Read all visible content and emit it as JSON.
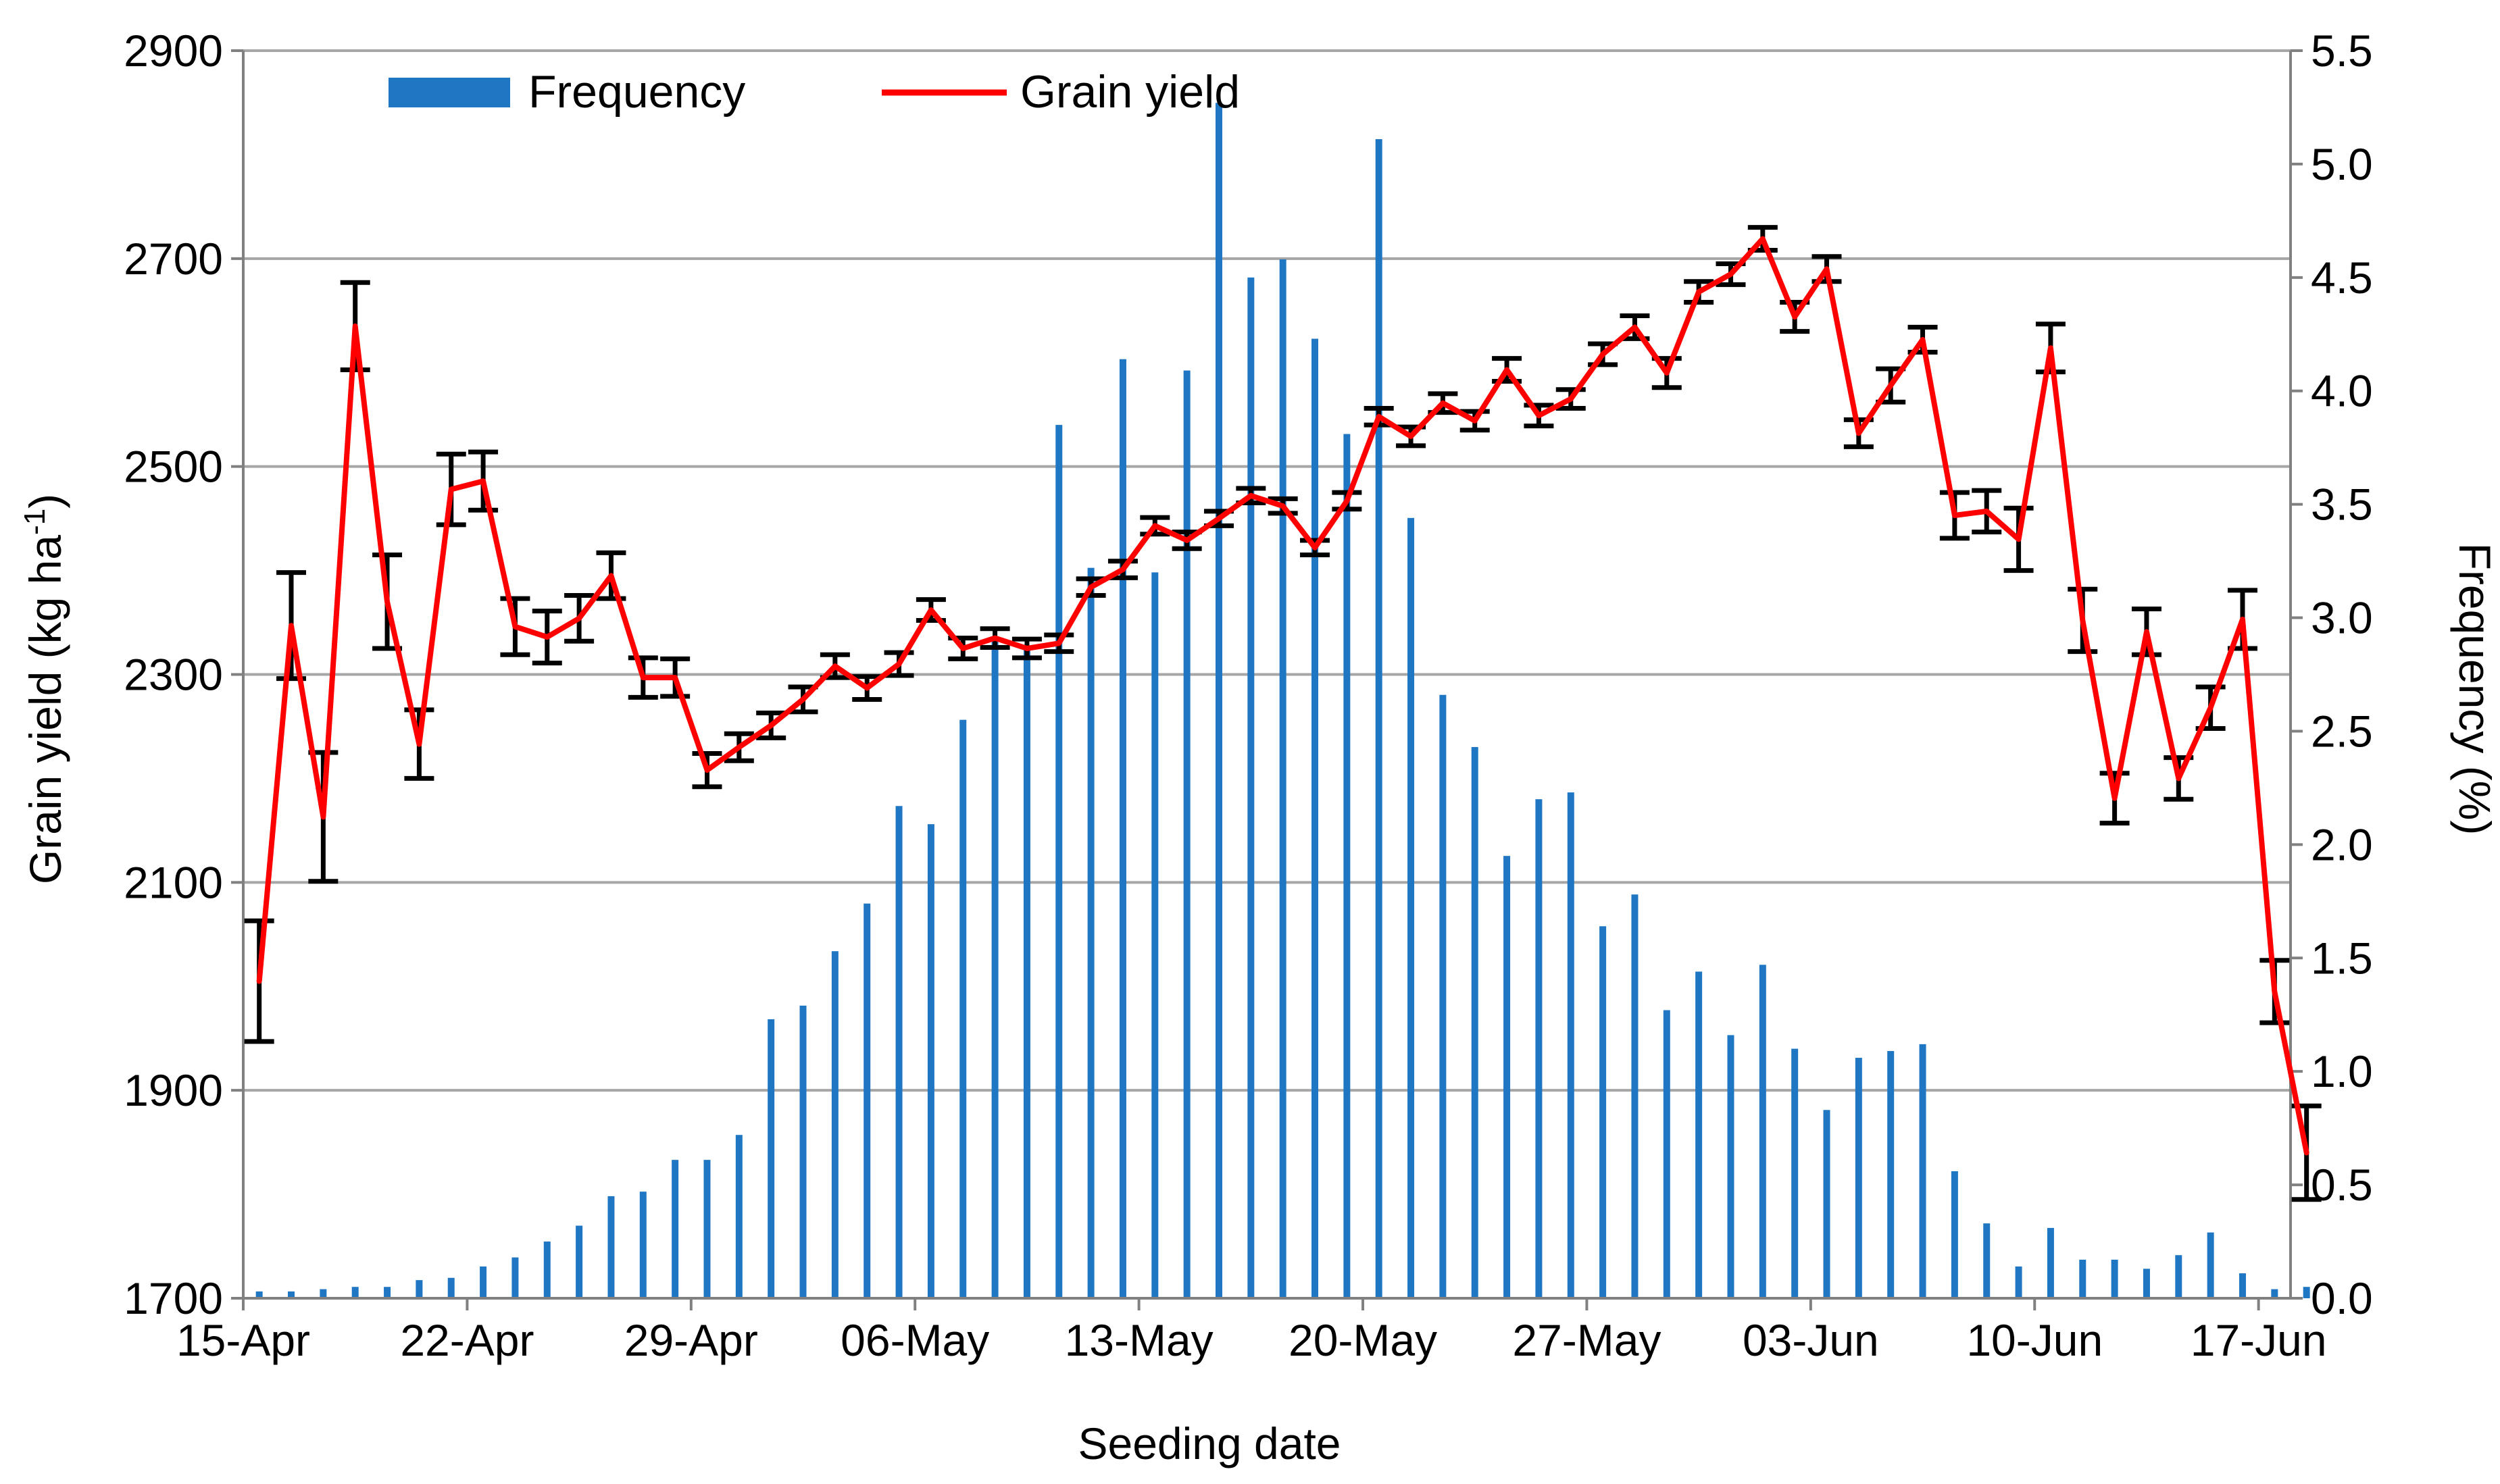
{
  "chart_data": {
    "type": "bar+line",
    "title": "",
    "xlabel": "Seeding date",
    "ylabel_left": {
      "base": "Grain yield (kg ha",
      "sup": "-1",
      "close": ")"
    },
    "ylabel_right": "Frequency (%)",
    "left_axis": {
      "min": 1700,
      "max": 2900,
      "step": 200,
      "tick_labels": [
        "1700",
        "1900",
        "2100",
        "2300",
        "2500",
        "2700",
        "2900"
      ]
    },
    "right_axis": {
      "min": 0,
      "max": 5.5,
      "step": 0.5,
      "tick_labels": [
        "0.0",
        "0.5",
        "1.0",
        "1.5",
        "2.0",
        "2.5",
        "3.0",
        "3.5",
        "4.0",
        "4.5",
        "5.0",
        "5.5"
      ]
    },
    "x_ticks": [
      "15-Apr",
      "22-Apr",
      "29-Apr",
      "06-May",
      "13-May",
      "20-May",
      "27-May",
      "03-Jun",
      "10-Jun",
      "17-Jun"
    ],
    "day_count": 64,
    "grid": "horizontal",
    "legend_position": "top",
    "colors": {
      "bar": "#1f77c4",
      "line": "#ff0000",
      "error": "#000000"
    },
    "series": [
      {
        "name": "Frequency",
        "type": "bar",
        "axis": "right",
        "color": "#1f77c4",
        "values": [
          0.03,
          0.03,
          0.04,
          0.05,
          0.05,
          0.08,
          0.09,
          0.14,
          0.18,
          0.25,
          0.32,
          0.45,
          0.47,
          0.61,
          0.61,
          0.72,
          1.23,
          1.29,
          1.53,
          1.74,
          2.17,
          2.09,
          2.55,
          2.91,
          2.87,
          3.85,
          3.22,
          4.14,
          3.2,
          4.09,
          5.27,
          4.5,
          4.58,
          4.23,
          3.81,
          5.11,
          3.44,
          2.66,
          2.43,
          1.95,
          2.2,
          2.23,
          1.64,
          1.78,
          1.27,
          1.44,
          1.16,
          1.47,
          1.1,
          0.83,
          1.06,
          1.09,
          1.12,
          0.56,
          0.33,
          0.14,
          0.31,
          0.17,
          0.17,
          0.13,
          0.19,
          0.29,
          0.11,
          0.04,
          0.05
        ]
      },
      {
        "name": "Grain yield",
        "type": "line",
        "axis": "left",
        "color": "#ff0000",
        "values": [
          2005,
          2347,
          2163,
          2635,
          2370,
          2233,
          2478,
          2486,
          2346,
          2336,
          2354,
          2395,
          2297,
          2297,
          2208,
          2230,
          2251,
          2276,
          2308,
          2287,
          2310,
          2362,
          2325,
          2335,
          2325,
          2330,
          2384,
          2401,
          2443,
          2429,
          2450,
          2472,
          2462,
          2422,
          2467,
          2548,
          2529,
          2561,
          2544,
          2593,
          2549,
          2565,
          2608,
          2634,
          2590,
          2668,
          2685,
          2719,
          2644,
          2690,
          2532,
          2578,
          2622,
          2453,
          2457,
          2430,
          2614,
          2352,
          2181,
          2341,
          2200,
          2268,
          2353,
          1995,
          1840
        ]
      },
      {
        "name": "Grain yield error",
        "type": "errorbar",
        "axis": "left",
        "values": [
          58,
          51,
          62,
          42,
          45,
          33,
          34,
          28,
          27,
          25,
          22,
          22,
          19,
          18,
          16,
          13,
          12,
          12,
          11,
          11,
          11,
          10,
          10,
          9,
          9,
          8,
          8,
          8,
          8,
          8,
          7,
          7,
          7,
          7,
          8,
          8,
          9,
          9,
          9,
          11,
          10,
          9,
          10,
          11,
          14,
          10,
          10,
          11,
          14,
          12,
          13,
          16,
          12,
          22,
          20,
          30,
          23,
          30,
          24,
          22,
          20,
          20,
          28,
          30,
          45
        ]
      }
    ]
  }
}
